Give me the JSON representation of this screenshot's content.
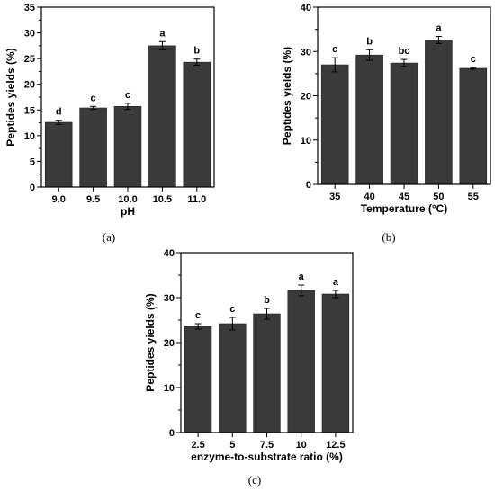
{
  "chart_data": [
    {
      "type": "bar",
      "panel": "(a)",
      "xlabel": "pH",
      "ylabel": "Peptides yields (%)",
      "categories": [
        "9.0",
        "9.5",
        "10.0",
        "10.5",
        "11.0"
      ],
      "values": [
        12.6,
        15.4,
        15.7,
        27.5,
        24.3
      ],
      "errors": [
        0.4,
        0.3,
        0.6,
        0.8,
        0.6
      ],
      "letters": [
        "d",
        "c",
        "c",
        "a",
        "b"
      ],
      "ylim": [
        0,
        35
      ],
      "yticks": [
        0,
        5,
        10,
        15,
        20,
        25,
        30,
        35
      ],
      "bar_color": "#3a3a3a"
    },
    {
      "type": "bar",
      "panel": "(b)",
      "xlabel": "Temperature (°C)",
      "ylabel": "Peptides yields (%)",
      "categories": [
        "35",
        "40",
        "45",
        "50",
        "55"
      ],
      "values": [
        27.0,
        29.2,
        27.4,
        32.6,
        26.2
      ],
      "errors": [
        1.6,
        1.2,
        0.8,
        0.8,
        0.2
      ],
      "letters": [
        "c",
        "b",
        "bc",
        "a",
        "c"
      ],
      "ylim": [
        0,
        40
      ],
      "yticks": [
        0,
        10,
        20,
        30,
        40
      ],
      "bar_color": "#3a3a3a"
    },
    {
      "type": "bar",
      "panel": "(c)",
      "xlabel": "enzyme-to-substrate ratio (%)",
      "ylabel": "Peptides yields (%)",
      "categories": [
        "2.5",
        "5",
        "7.5",
        "10",
        "12.5"
      ],
      "values": [
        23.6,
        24.2,
        26.4,
        31.6,
        30.8
      ],
      "errors": [
        0.6,
        1.4,
        1.2,
        1.2,
        0.8
      ],
      "letters": [
        "c",
        "c",
        "b",
        "a",
        "a"
      ],
      "ylim": [
        0,
        40
      ],
      "yticks": [
        0,
        10,
        20,
        30,
        40
      ],
      "bar_color": "#3a3a3a"
    }
  ]
}
